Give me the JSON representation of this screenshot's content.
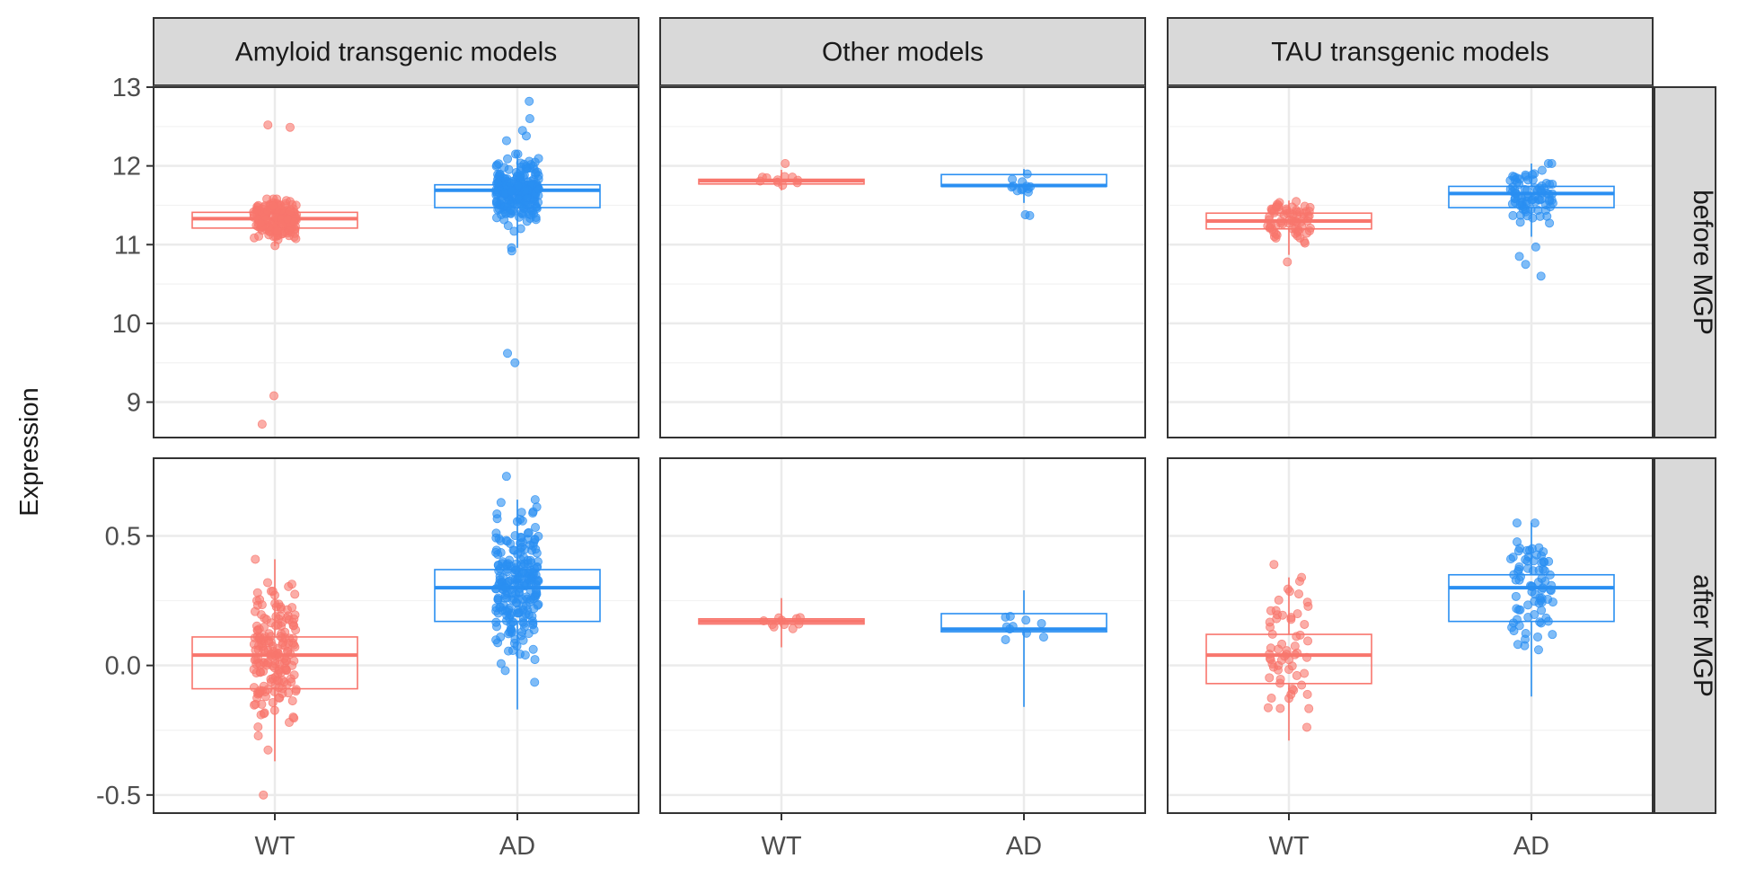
{
  "chart_data": {
    "type": "boxplot",
    "ylabel": "Expression",
    "categories": [
      "WT",
      "AD"
    ],
    "columns": [
      "Amyloid transgenic models",
      "Other models",
      "TAU transgenic models"
    ],
    "rows": [
      {
        "label": "before MGP",
        "ylim": [
          8.55,
          13.0
        ],
        "ticks": [
          9,
          10,
          11,
          12,
          13
        ],
        "tick_labels": [
          "9",
          "10",
          "11",
          "12",
          "13"
        ]
      },
      {
        "label": "after MGP",
        "ylim": [
          -0.57,
          0.8
        ],
        "ticks": [
          -0.5,
          0.0,
          0.5
        ],
        "tick_labels": [
          "-0.5",
          "0.0",
          "0.5"
        ]
      }
    ],
    "colors": {
      "WT": "#F8766D",
      "AD": "#2A8FF2"
    },
    "boxes": [
      {
        "row": 0,
        "col": 0,
        "group": "WT",
        "q1": 11.21,
        "median": 11.33,
        "q3": 11.41,
        "wlo": 10.98,
        "whi": 11.58,
        "n": 170,
        "outliers": [
          12.52,
          12.49,
          9.08,
          8.72
        ]
      },
      {
        "row": 0,
        "col": 0,
        "group": "AD",
        "q1": 11.47,
        "median": 11.69,
        "q3": 11.76,
        "wlo": 10.96,
        "whi": 12.15,
        "n": 230,
        "outliers": [
          12.82,
          12.6,
          12.45,
          12.38,
          12.32,
          10.92,
          9.62,
          9.5
        ]
      },
      {
        "row": 0,
        "col": 1,
        "group": "WT",
        "q1": 11.77,
        "median": 11.81,
        "q3": 11.83,
        "wlo": 11.69,
        "whi": 11.95,
        "n": 10,
        "outliers": [
          12.03
        ]
      },
      {
        "row": 0,
        "col": 1,
        "group": "AD",
        "q1": 11.74,
        "median": 11.75,
        "q3": 11.89,
        "wlo": 11.53,
        "whi": 11.96,
        "n": 12,
        "outliers": [
          11.37,
          11.38
        ]
      },
      {
        "row": 0,
        "col": 2,
        "group": "WT",
        "q1": 11.2,
        "median": 11.3,
        "q3": 11.4,
        "wlo": 10.87,
        "whi": 11.56,
        "n": 70,
        "outliers": [
          10.78
        ]
      },
      {
        "row": 0,
        "col": 2,
        "group": "AD",
        "q1": 11.47,
        "median": 11.65,
        "q3": 11.74,
        "wlo": 11.1,
        "whi": 12.03,
        "n": 80,
        "outliers": [
          10.97,
          10.85,
          10.75,
          10.6
        ]
      },
      {
        "row": 1,
        "col": 0,
        "group": "WT",
        "q1": -0.09,
        "median": 0.04,
        "q3": 0.11,
        "wlo": -0.37,
        "whi": 0.41,
        "n": 180,
        "outliers": [
          -0.5
        ]
      },
      {
        "row": 1,
        "col": 0,
        "group": "AD",
        "q1": 0.17,
        "median": 0.3,
        "q3": 0.37,
        "wlo": -0.17,
        "whi": 0.64,
        "n": 230,
        "outliers": [
          0.73
        ]
      },
      {
        "row": 1,
        "col": 1,
        "group": "WT",
        "q1": 0.16,
        "median": 0.17,
        "q3": 0.18,
        "wlo": 0.07,
        "whi": 0.26,
        "n": 10,
        "outliers": []
      },
      {
        "row": 1,
        "col": 1,
        "group": "AD",
        "q1": 0.13,
        "median": 0.14,
        "q3": 0.2,
        "wlo": -0.16,
        "whi": 0.29,
        "n": 10,
        "outliers": []
      },
      {
        "row": 1,
        "col": 2,
        "group": "WT",
        "q1": -0.07,
        "median": 0.04,
        "q3": 0.12,
        "wlo": -0.29,
        "whi": 0.34,
        "n": 60,
        "outliers": [
          0.39
        ]
      },
      {
        "row": 1,
        "col": 2,
        "group": "AD",
        "q1": 0.17,
        "median": 0.3,
        "q3": 0.35,
        "wlo": -0.12,
        "whi": 0.55,
        "n": 80,
        "outliers": []
      }
    ],
    "legend": "none",
    "grid": true
  }
}
